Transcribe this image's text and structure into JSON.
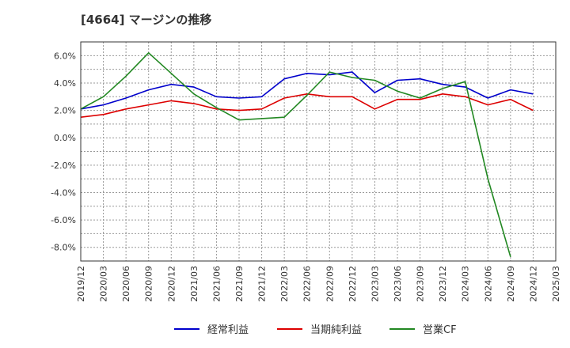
{
  "chart_data": {
    "type": "line",
    "title": "[4664]  マージンの推移",
    "xlabel": "",
    "ylabel": "",
    "ylim": [
      -9.0,
      7.0
    ],
    "yticks": [
      6.0,
      4.0,
      2.0,
      0.0,
      -2.0,
      -4.0,
      -6.0,
      -8.0
    ],
    "ytick_labels": [
      "6.0%",
      "4.0%",
      "2.0%",
      "0.0%",
      "-2.0%",
      "-4.0%",
      "-6.0%",
      "-8.0%"
    ],
    "xticks": [
      "2019/12",
      "2020/03",
      "2020/06",
      "2020/09",
      "2020/12",
      "2021/03",
      "2021/06",
      "2021/09",
      "2021/12",
      "2022/03",
      "2022/06",
      "2022/09",
      "2022/12",
      "2023/03",
      "2023/06",
      "2023/09",
      "2023/12",
      "2024/03",
      "2024/06",
      "2024/09",
      "2024/12",
      "2025/03"
    ],
    "grid": true,
    "legend_position": "bottom",
    "series": [
      {
        "name": "経常利益",
        "color": "#0000cc",
        "x": [
          "2019/12",
          "2020/03",
          "2020/06",
          "2020/09",
          "2020/12",
          "2021/03",
          "2021/06",
          "2021/09",
          "2021/12",
          "2022/03",
          "2022/06",
          "2022/09",
          "2022/12",
          "2023/03",
          "2023/06",
          "2023/09",
          "2023/12",
          "2024/03",
          "2024/06",
          "2024/09",
          "2024/12"
        ],
        "values": [
          2.1,
          2.4,
          2.9,
          3.5,
          3.9,
          3.7,
          3.0,
          2.9,
          3.0,
          4.3,
          4.7,
          4.6,
          4.8,
          3.3,
          4.2,
          4.3,
          3.9,
          3.7,
          2.9,
          3.5,
          3.2
        ]
      },
      {
        "name": "当期純利益",
        "color": "#dd0000",
        "x": [
          "2019/12",
          "2020/03",
          "2020/06",
          "2020/09",
          "2020/12",
          "2021/03",
          "2021/06",
          "2021/09",
          "2021/12",
          "2022/03",
          "2022/06",
          "2022/09",
          "2022/12",
          "2023/03",
          "2023/06",
          "2023/09",
          "2023/12",
          "2024/03",
          "2024/06",
          "2024/09",
          "2024/12"
        ],
        "values": [
          1.5,
          1.7,
          2.1,
          2.4,
          2.7,
          2.5,
          2.1,
          2.0,
          2.1,
          2.9,
          3.2,
          3.0,
          3.0,
          2.1,
          2.8,
          2.8,
          3.2,
          3.0,
          2.4,
          2.8,
          2.0
        ]
      },
      {
        "name": "営業CF",
        "color": "#228822",
        "x": [
          "2019/12",
          "2020/03",
          "2020/06",
          "2020/09",
          "2020/12",
          "2021/03",
          "2021/06",
          "2021/09",
          "2021/12",
          "2022/03",
          "2022/06",
          "2022/09",
          "2022/12",
          "2023/03",
          "2023/06",
          "2023/09",
          "2023/12",
          "2024/03",
          "2024/06",
          "2024/09"
        ],
        "values": [
          2.1,
          3.0,
          4.5,
          6.2,
          4.7,
          3.2,
          2.2,
          1.3,
          1.4,
          1.5,
          3.1,
          4.8,
          4.4,
          4.2,
          3.4,
          2.9,
          3.6,
          4.1,
          -3.0,
          -8.7
        ]
      }
    ]
  }
}
